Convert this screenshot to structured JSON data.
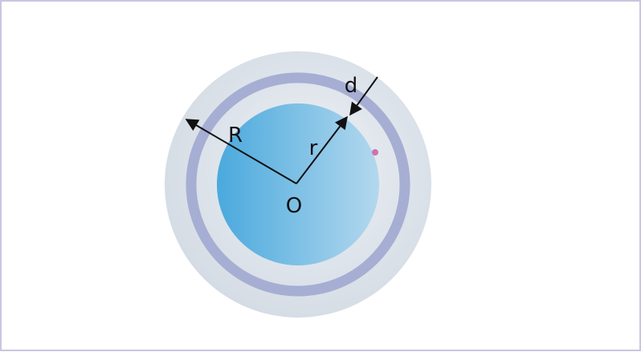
{
  "labels": {
    "outer_radius": "R",
    "inner_radius": "r",
    "thickness": "d",
    "center": "O"
  }
}
